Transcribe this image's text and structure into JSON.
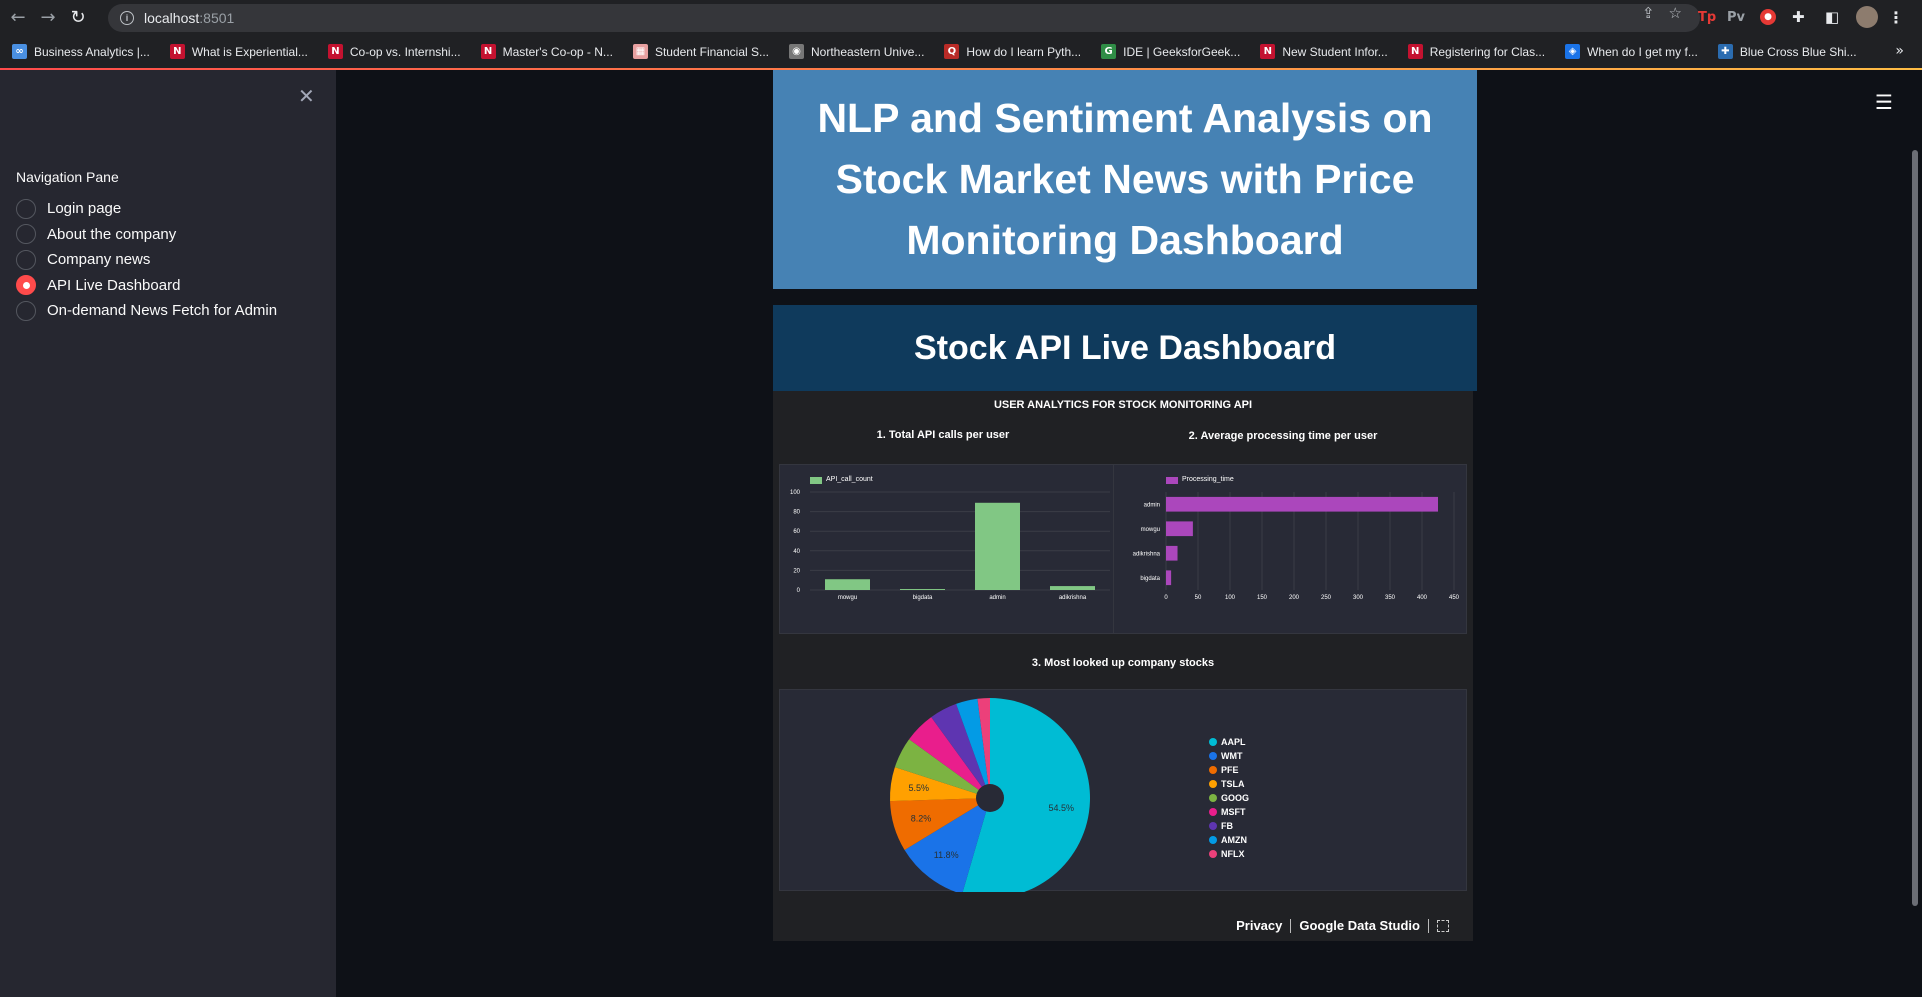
{
  "browser": {
    "url_host": "localhost",
    "url_port": ":8501",
    "extensions": [
      "Tp",
      "Pv"
    ],
    "bookmarks": [
      {
        "label": "Business Analytics |...",
        "color": "#4a90e2",
        "glyph": "∞"
      },
      {
        "label": "What is Experiential...",
        "color": "#c41230",
        "glyph": "N"
      },
      {
        "label": "Co-op vs. Internshi...",
        "color": "#c41230",
        "glyph": "N"
      },
      {
        "label": "Master's Co-op - N...",
        "color": "#c41230",
        "glyph": "N"
      },
      {
        "label": "Student Financial S...",
        "color": "#e8a0a0",
        "glyph": "▦"
      },
      {
        "label": "Northeastern Unive...",
        "color": "#777777",
        "glyph": "◉"
      },
      {
        "label": "How do I learn Pyth...",
        "color": "#b92b27",
        "glyph": "Q"
      },
      {
        "label": "IDE | GeeksforGeek...",
        "color": "#2f8d46",
        "glyph": "G"
      },
      {
        "label": "New Student Infor...",
        "color": "#c41230",
        "glyph": "N"
      },
      {
        "label": "Registering for Clas...",
        "color": "#c41230",
        "glyph": "N"
      },
      {
        "label": "When do I get my f...",
        "color": "#1a73e8",
        "glyph": "◈"
      },
      {
        "label": "Blue Cross Blue Shi...",
        "color": "#2b6cb0",
        "glyph": "✚"
      }
    ]
  },
  "sidebar": {
    "title": "Navigation Pane",
    "options": [
      {
        "label": "Login page",
        "selected": false
      },
      {
        "label": "About the company",
        "selected": false
      },
      {
        "label": "Company news",
        "selected": false
      },
      {
        "label": "API Live Dashboard",
        "selected": true
      },
      {
        "label": "On-demand News Fetch for Admin",
        "selected": false
      }
    ]
  },
  "main": {
    "title": "NLP and Sentiment Analysis on Stock Market News with Price Monitoring Dashboard",
    "subtitle": "Stock API Live Dashboard"
  },
  "report": {
    "title": "USER ANALYTICS FOR STOCK MONITORING API",
    "footer_privacy": "Privacy",
    "footer_brand": "Google Data Studio"
  },
  "chart_data": [
    {
      "type": "bar",
      "title": "1. Total API calls per user",
      "legend": "API_call_count",
      "categories": [
        "mowgu",
        "bigdata",
        "admin",
        "adikrishna"
      ],
      "values": [
        11,
        1,
        89,
        4
      ],
      "ylim": [
        0,
        100
      ],
      "yticks": [
        0,
        20,
        40,
        60,
        80,
        100
      ],
      "color": "#81c784"
    },
    {
      "type": "bar",
      "orientation": "horizontal",
      "title": "2. Average processing time per user",
      "legend": "Processing_time",
      "categories": [
        "admin",
        "mowgu",
        "adikrishna",
        "bigdata"
      ],
      "values": [
        425,
        42,
        18,
        8
      ],
      "xlim": [
        0,
        450
      ],
      "xticks": [
        0,
        50,
        100,
        150,
        200,
        250,
        300,
        350,
        400,
        450
      ],
      "color": "#ab47bc"
    },
    {
      "type": "pie",
      "title": "3. Most looked up company stocks",
      "labels": [
        "AAPL",
        "WMT",
        "PFE",
        "TSLA",
        "GOOG",
        "MSFT",
        "FB",
        "AMZN",
        "NFLX"
      ],
      "values": [
        54.5,
        11.8,
        8.2,
        5.5,
        5.0,
        5.0,
        4.5,
        3.5,
        2.0
      ],
      "value_labels": [
        "54.5%",
        "11.8%",
        "8.2%",
        "5.5%",
        "",
        "",
        "",
        "",
        ""
      ],
      "colors": [
        "#00bcd4",
        "#1a73e8",
        "#ef6c00",
        "#ffa000",
        "#7cb342",
        "#e91e8c",
        "#5e35b1",
        "#039be5",
        "#ec407a"
      ]
    }
  ]
}
